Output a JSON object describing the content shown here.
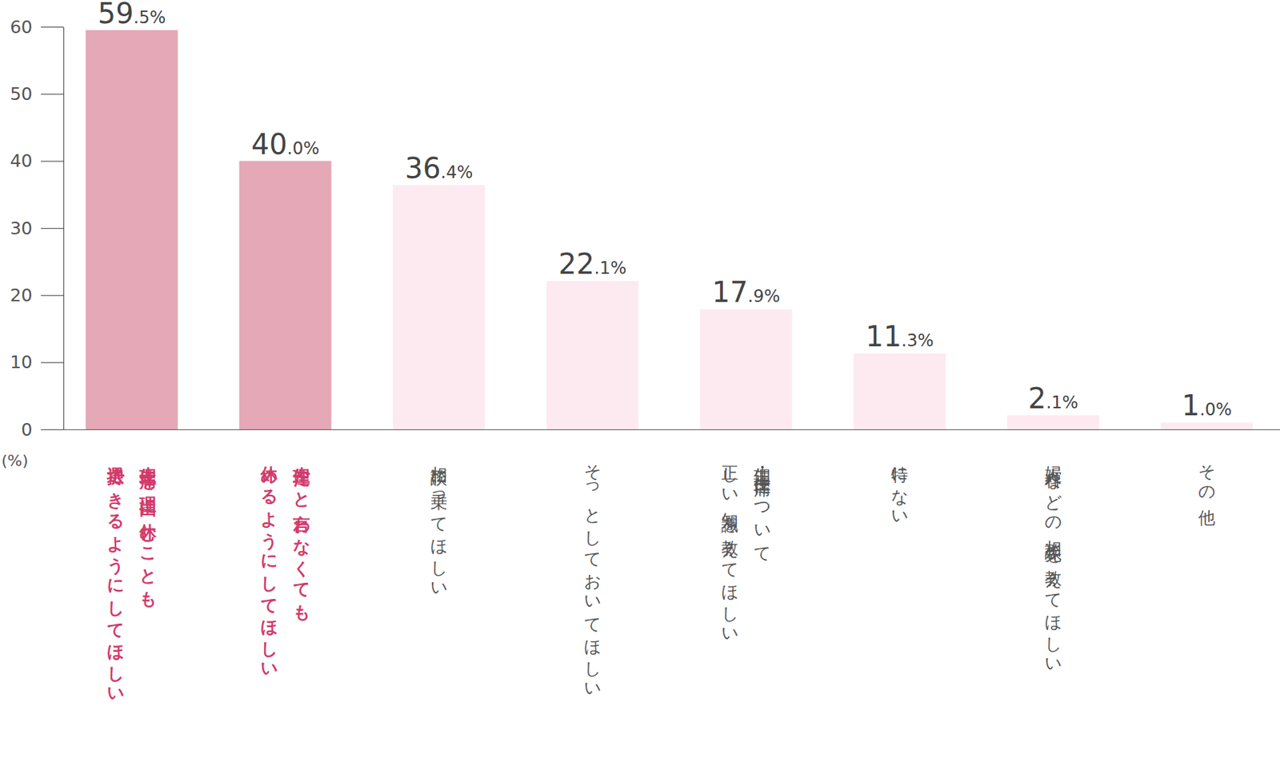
{
  "chart_data": {
    "type": "bar",
    "y_label": "(%)",
    "categories": [
      "生理痛を理由に休むことも\n選択できるようにしてほしい",
      "生理だと言わなくても\n休めるようにしてほしい",
      "相談に乗ってほしい",
      "そっとしておいてほしい",
      "生理・生理痛について\n正しい知識を教えてほしい",
      "特にない",
      "婦人科などの相談先を教えてほしい",
      "その他"
    ],
    "values": [
      59.5,
      40.0,
      36.4,
      22.1,
      17.9,
      11.3,
      2.1,
      1.0
    ],
    "value_labels": [
      "59.5%",
      "40.0%",
      "36.4%",
      "22.1%",
      "17.9%",
      "11.3%",
      "2.1%",
      "1.0%"
    ],
    "colors": [
      "#e4a8b6",
      "#e4a8b6",
      "#fdeaf0",
      "#fdeaf0",
      "#fdeaf0",
      "#fdeaf0",
      "#fdeaf0",
      "#fdeaf0"
    ],
    "data_labels": true,
    "ylim": [
      0,
      60
    ],
    "yticks": [
      0,
      10,
      20,
      30,
      40,
      50,
      60
    ],
    "grid": false
  }
}
